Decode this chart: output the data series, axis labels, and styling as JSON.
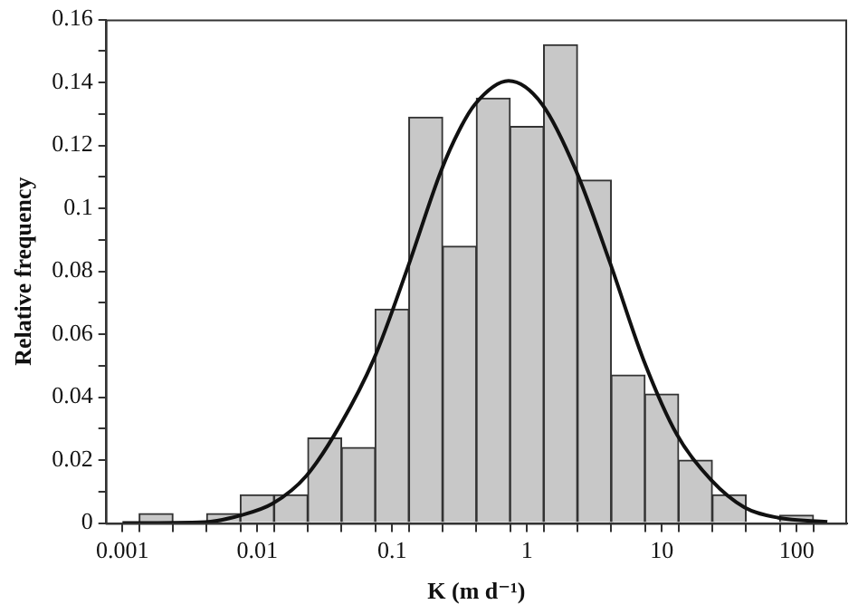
{
  "chart_data": {
    "type": "histogram",
    "xlabel": "K (m d⁻¹)",
    "ylabel": "Relative frequency",
    "log": "x",
    "marker": "none",
    "bins": [
      0.00133,
      0.00237,
      0.00422,
      0.0075,
      0.0133,
      0.0237,
      0.0422,
      0.075,
      0.133,
      0.237,
      0.422,
      0.75,
      1.33,
      2.37,
      4.22,
      7.5,
      13.3,
      23.7,
      42.2,
      75,
      133
    ],
    "series": [
      {
        "color": "#c8c8c8",
        "values": [
          0.003,
          0,
          0.003,
          0.009,
          0.009,
          0.027,
          0.024,
          0.068,
          0.129,
          0.088,
          0.135,
          0.126,
          0.152,
          0.109,
          0.047,
          0.041,
          0.02,
          0.009,
          0,
          0.0025
        ]
      },
      {
        "type": "line",
        "color": "#111111",
        "x": [
          0.001,
          0.0041,
          0.0073,
          0.013,
          0.0231,
          0.041,
          0.073,
          0.13,
          0.231,
          0.316,
          0.41,
          0.73,
          1.3,
          2.31,
          4.11,
          7.3,
          13,
          23.1,
          41,
          73,
          169
        ],
        "values": [
          0,
          0.0003,
          0.0023,
          0.0062,
          0.015,
          0.031,
          0.052,
          0.081,
          0.112,
          0.125,
          0.133,
          0.1405,
          0.133,
          0.112,
          0.083,
          0.052,
          0.028,
          0.0138,
          0.005,
          0.0017,
          0.0004
        ]
      }
    ],
    "xlim": [
      0.00075,
      237
    ],
    "xticks": [
      0.001,
      {
        "value": 0.00133,
        "label": null
      },
      {
        "value": 0.00237,
        "label": null
      },
      {
        "value": 0.00422,
        "label": null
      },
      {
        "value": 0.0075,
        "label": null
      },
      0.01,
      {
        "value": 0.0133,
        "label": null
      },
      {
        "value": 0.0237,
        "label": null
      },
      {
        "value": 0.0422,
        "label": null
      },
      {
        "value": 0.075,
        "label": null
      },
      0.1,
      {
        "value": 0.133,
        "label": null
      },
      {
        "value": 0.237,
        "label": null
      },
      {
        "value": 0.422,
        "label": null
      },
      {
        "value": 0.75,
        "label": null
      },
      1,
      {
        "value": 1.33,
        "label": null
      },
      {
        "value": 2.37,
        "label": null
      },
      {
        "value": 4.22,
        "label": null
      },
      {
        "value": 7.5,
        "label": null
      },
      10,
      {
        "value": 13.3,
        "label": null
      },
      {
        "value": 23.7,
        "label": null
      },
      {
        "value": 42.2,
        "label": null
      },
      {
        "value": 75,
        "label": null
      },
      100,
      {
        "value": 133,
        "label": null
      }
    ],
    "ylim": [
      0,
      0.16
    ],
    "yticks": [
      0,
      {
        "value": 0.01,
        "label": null
      },
      0.02,
      {
        "value": 0.03,
        "label": null
      },
      0.04,
      {
        "value": 0.05,
        "label": null
      },
      0.06,
      {
        "value": 0.07,
        "label": null
      },
      0.08,
      {
        "value": 0.09,
        "label": null
      },
      0.1,
      {
        "value": 0.11,
        "label": null
      },
      0.12,
      {
        "value": 0.13,
        "label": null
      },
      0.14,
      {
        "value": 0.15,
        "label": null
      },
      0.16
    ]
  }
}
